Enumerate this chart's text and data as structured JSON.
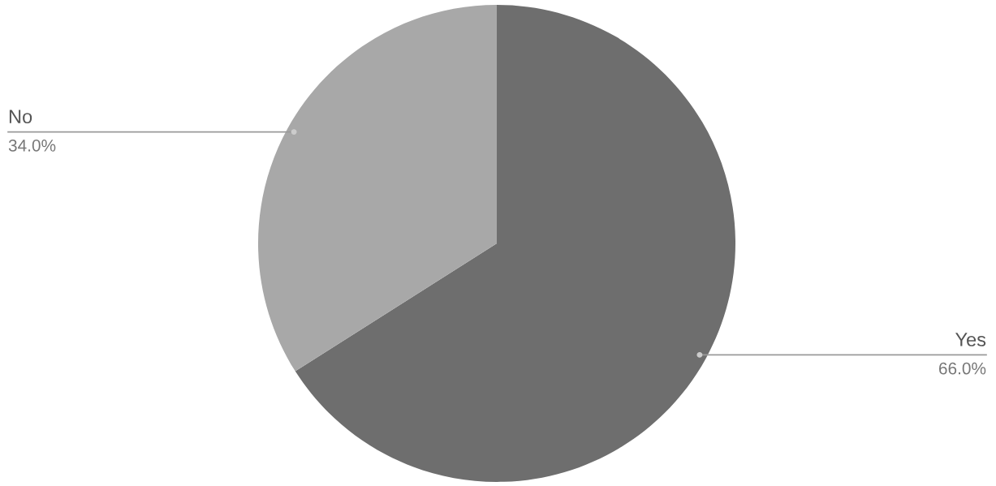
{
  "chart_data": {
    "type": "pie",
    "categories": [
      "Yes",
      "No"
    ],
    "values": [
      66.0,
      34.0
    ],
    "colors": [
      "#6e6e6e",
      "#a8a8a8"
    ],
    "value_labels": [
      "66.0%",
      "34.0%"
    ]
  }
}
